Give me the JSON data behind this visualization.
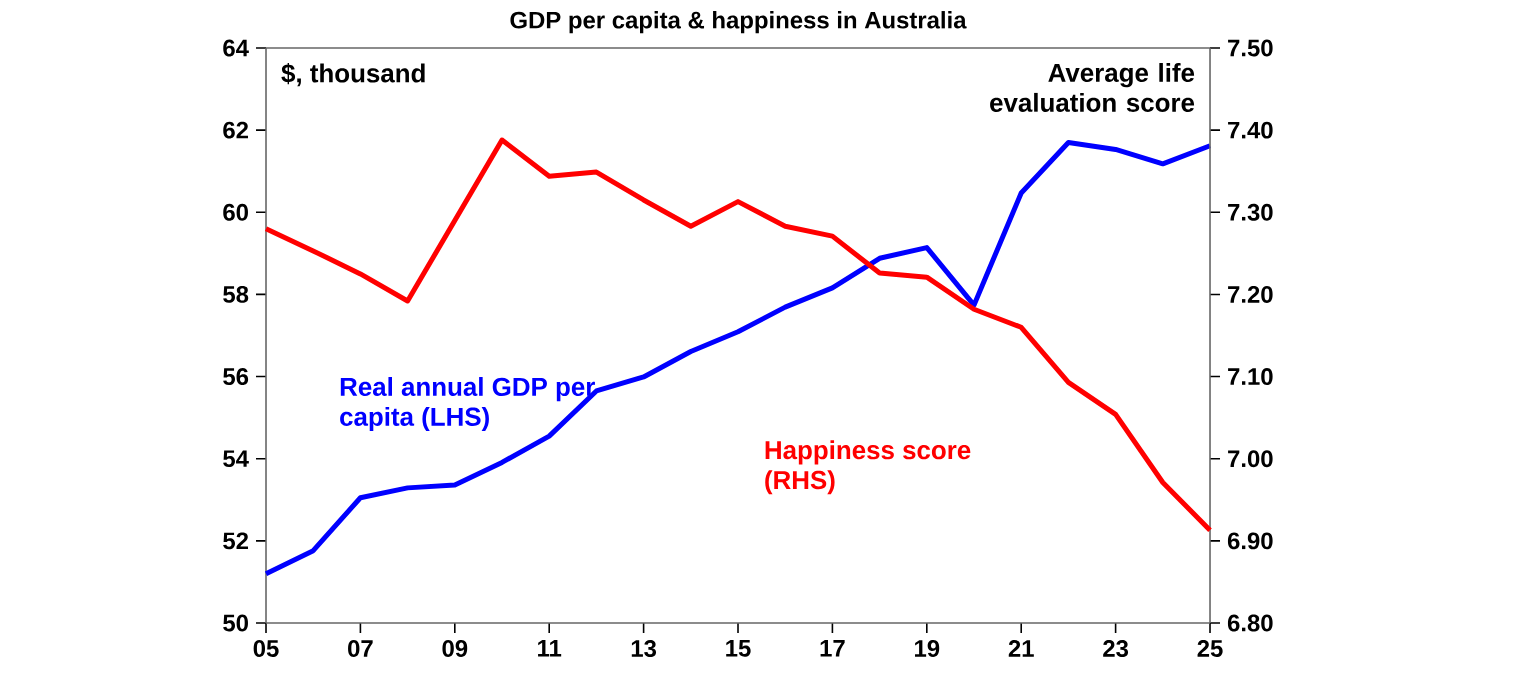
{
  "chart_data": {
    "type": "line",
    "title": "GDP per capita & happiness in Australia",
    "ylabel": "$, thousand",
    "y2label": "Average life evaluation score",
    "x": [
      2005,
      2006,
      2007,
      2008,
      2009,
      2010,
      2011,
      2012,
      2013,
      2014,
      2015,
      2016,
      2017,
      2018,
      2019,
      2020,
      2021,
      2022,
      2023,
      2024,
      2025
    ],
    "series": [
      {
        "name": "Real annual GDP per capita (LHS)",
        "color": "#0000ff",
        "values": [
          51.2,
          51.76,
          53.05,
          53.29,
          53.36,
          53.91,
          54.55,
          55.65,
          55.99,
          56.61,
          57.09,
          57.69,
          58.16,
          58.88,
          59.14,
          57.74,
          60.47,
          61.7,
          61.53,
          61.18,
          61.62
        ]
      },
      {
        "name": "Happiness score (RHS)",
        "color": "#ff0000",
        "axis": "y2",
        "values": [
          7.28,
          7.253,
          7.225,
          7.192,
          7.29,
          7.388,
          7.344,
          7.349,
          7.315,
          7.283,
          7.313,
          7.283,
          7.271,
          7.226,
          7.221,
          7.182,
          7.16,
          7.093,
          7.054,
          6.971,
          6.913
        ]
      }
    ],
    "xlim": [
      2005,
      2025
    ],
    "xticks": [
      {
        "value": 2005,
        "label": "05"
      },
      {
        "value": 2007,
        "label": "07"
      },
      {
        "value": 2009,
        "label": "09"
      },
      {
        "value": 2011,
        "label": "11"
      },
      {
        "value": 2013,
        "label": "13"
      },
      {
        "value": 2015,
        "label": "15"
      },
      {
        "value": 2017,
        "label": "17"
      },
      {
        "value": 2019,
        "label": "19"
      },
      {
        "value": 2021,
        "label": "21"
      },
      {
        "value": 2023,
        "label": "23"
      },
      {
        "value": 2025,
        "label": "25"
      }
    ],
    "ylim": [
      50,
      64
    ],
    "yticks": [
      50,
      52,
      54,
      56,
      58,
      60,
      62,
      64
    ],
    "y2lim": [
      6.8,
      7.5
    ],
    "y2ticks": [
      {
        "value": 6.8,
        "label": "6.80"
      },
      {
        "value": 6.9,
        "label": "6.90"
      },
      {
        "value": 7.0,
        "label": "7.00"
      },
      {
        "value": 7.1,
        "label": "7.10"
      },
      {
        "value": 7.2,
        "label": "7.20"
      },
      {
        "value": 7.3,
        "label": "7.30"
      },
      {
        "value": 7.4,
        "label": "7.40"
      },
      {
        "value": 7.5,
        "label": "7.50"
      }
    ],
    "grid": false,
    "marker": "none",
    "line_style": "solid"
  }
}
